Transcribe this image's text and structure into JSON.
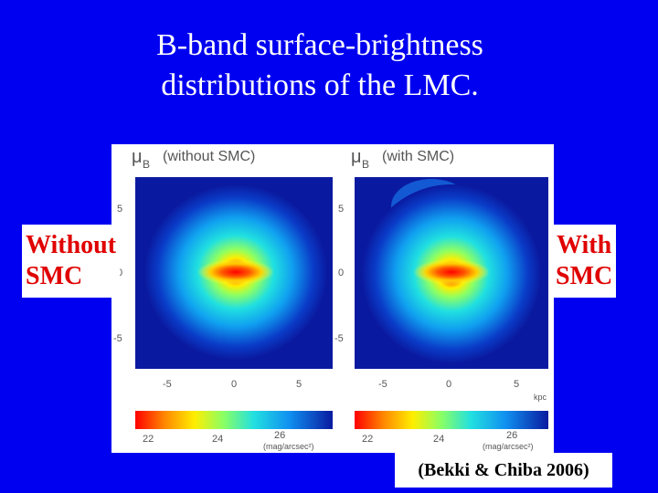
{
  "slide": {
    "title_line1": "B-band surface-brightness",
    "title_line2": "distributions of the LMC.",
    "label_left_line1": "Without",
    "label_left_line2": "SMC",
    "label_right_line1": "With",
    "label_right_line2": "SMC",
    "citation": "(Bekki & Chiba 2006)"
  },
  "figure": {
    "left_panel_title": "(without SMC)",
    "right_panel_title": "(with SMC)",
    "mu_symbol": "μ",
    "mu_subscript": "B",
    "x_tick_labels": [
      "-5",
      "0",
      "5"
    ],
    "y_tick_labels": [
      "5",
      "0",
      "-5"
    ],
    "x_unit": "kpc",
    "colorbar_ticks": [
      "22",
      "24",
      "26"
    ],
    "colorbar_unit": "(mag/arcsec²)"
  },
  "colors": {
    "background": "#0000f0",
    "label_text": "#e00000"
  }
}
